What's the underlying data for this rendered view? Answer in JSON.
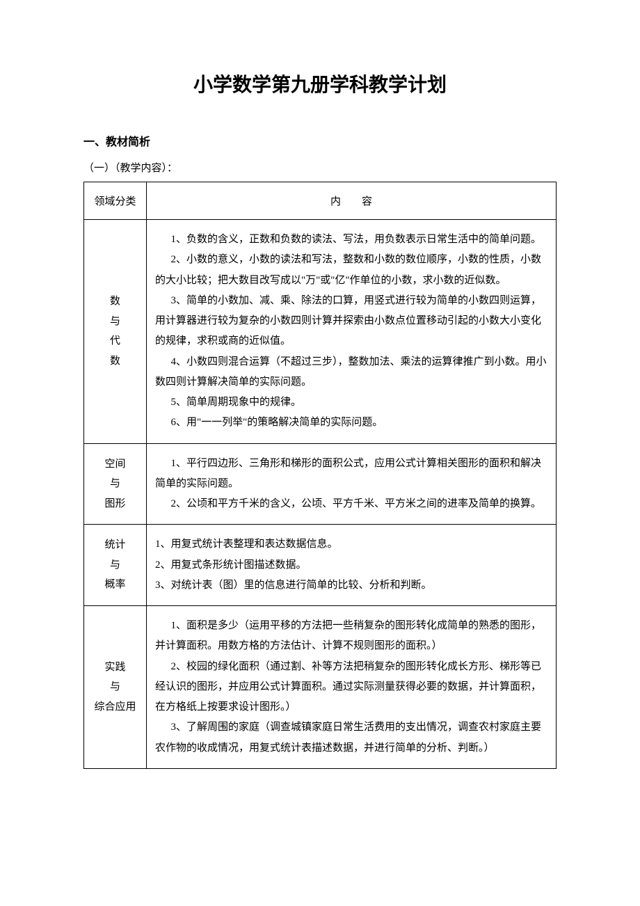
{
  "document": {
    "title": "小学数学第九册学科教学计划",
    "section_heading": "一、教材简析",
    "subsection": "（一）（教学内容）："
  },
  "table": {
    "header": {
      "category": "领域分类",
      "content": "内容"
    },
    "rows": [
      {
        "category_chars": [
          "数",
          "与",
          "代",
          "数"
        ],
        "items": [
          "1、负数的含义，正数和负数的读法、写法，用负数表示日常生活中的简单问题。",
          "2、小数的意义，小数的读法和写法，整数和小数的数位顺序，小数的性质，小数的大小比较；把大数目改写成以\"万\"或\"亿\"作单位的小数，求小数的近似数。",
          "3、简单的小数加、减、乘、除法的口算，用竖式进行较为简单的小数四则运算，用计算器进行较为复杂的小数四则计算并探索由小数点位置移动引起的小数大小变化的规律，求积或商的近似值。",
          "4、小数四则混合运算（不超过三步），整数加法、乘法的运算律推广到小数。用小数四则计算解决简单的实际问题。",
          "5、简单周期现象中的规律。",
          "6、用\"一一列举\"的策略解决简单的实际问题。"
        ]
      },
      {
        "category_chars": [
          "空间",
          "与",
          "图形"
        ],
        "items": [
          "1、平行四边形、三角形和梯形的面积公式，应用公式计算相关图形的面积和解决简单的实际问题。",
          "2、公顷和平方千米的含义，公顷、平方千米、平方米之间的进率及简单的换算。"
        ]
      },
      {
        "category_chars": [
          "统计",
          "与",
          "概率"
        ],
        "items": [
          "1、用复式统计表整理和表达数据信息。",
          "2、用复式条形统计图描述数据。",
          "3、对统计表（图）里的信息进行简单的比较、分析和判断。"
        ]
      },
      {
        "category_chars": [
          "实践",
          "与",
          "综合应用"
        ],
        "items": [
          "1、面积是多少（运用平移的方法把一些稍复杂的图形转化成简单的熟悉的图形，并计算面积。用数方格的方法估计、计算不规则图形的面积。）",
          "2、校园的绿化面积（通过割、补等方法把稍复杂的图形转化成长方形、梯形等已经认识的图形，并应用公式计算面积。通过实际测量获得必要的数据，并计算面积，在方格纸上按要求设计图形。）",
          "3、了解周围的家庭（调查城镇家庭日常生活费用的支出情况，调查农村家庭主要农作物的收成情况，用复式统计表描述数据，并进行简单的分析、判断。）"
        ]
      }
    ]
  },
  "style": {
    "background_color": "#ffffff",
    "text_color": "#000000",
    "border_color": "#000000",
    "title_fontsize": 28,
    "body_fontsize": 15,
    "line_height": 1.95
  }
}
